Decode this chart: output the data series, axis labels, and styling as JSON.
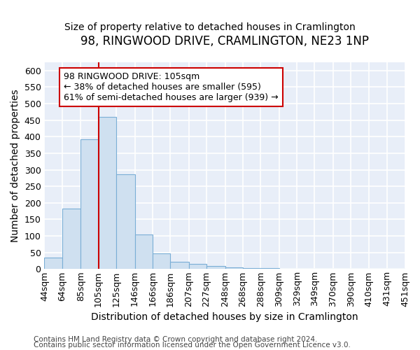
{
  "title": "98, RINGWOOD DRIVE, CRAMLINGTON, NE23 1NP",
  "subtitle": "Size of property relative to detached houses in Cramlington",
  "xlabel": "Distribution of detached houses by size in Cramlington",
  "ylabel": "Number of detached properties",
  "footnote1": "Contains HM Land Registry data © Crown copyright and database right 2024.",
  "footnote2": "Contains public sector information licensed under the Open Government Licence v3.0.",
  "bin_edges": [
    44,
    64,
    85,
    105,
    125,
    146,
    166,
    186,
    207,
    227,
    248,
    268,
    288,
    309,
    329,
    349,
    370,
    390,
    410,
    431,
    451
  ],
  "bin_labels": [
    "44sqm",
    "64sqm",
    "85sqm",
    "105sqm",
    "125sqm",
    "146sqm",
    "166sqm",
    "186sqm",
    "207sqm",
    "227sqm",
    "248sqm",
    "268sqm",
    "288sqm",
    "309sqm",
    "329sqm",
    "349sqm",
    "370sqm",
    "390sqm",
    "410sqm",
    "431sqm",
    "451sqm"
  ],
  "counts": [
    35,
    182,
    393,
    460,
    287,
    105,
    48,
    22,
    15,
    10,
    5,
    2,
    2,
    1,
    1,
    1,
    1,
    1,
    1,
    1
  ],
  "bar_color": "#cfe0f0",
  "bar_edge_color": "#7aaed6",
  "property_size": 105,
  "vline_color": "#cc0000",
  "annotation_text": "98 RINGWOOD DRIVE: 105sqm\n← 38% of detached houses are smaller (595)\n61% of semi-detached houses are larger (939) →",
  "annotation_box_color": "white",
  "annotation_box_edge_color": "#cc0000",
  "ylim": [
    0,
    625
  ],
  "yticks": [
    0,
    50,
    100,
    150,
    200,
    250,
    300,
    350,
    400,
    450,
    500,
    550,
    600
  ],
  "background_color": "#e8eef8",
  "grid_color": "white",
  "title_fontsize": 12,
  "subtitle_fontsize": 10,
  "axis_label_fontsize": 10,
  "tick_fontsize": 9,
  "annotation_fontsize": 9,
  "footnote_fontsize": 7.5
}
